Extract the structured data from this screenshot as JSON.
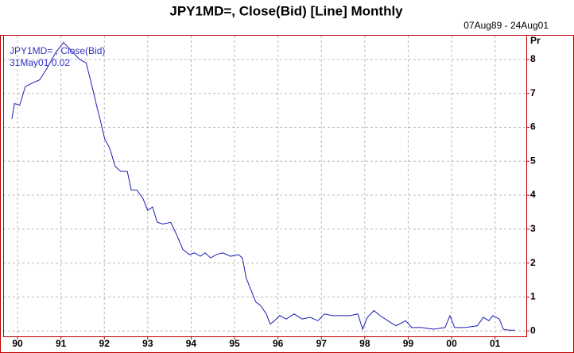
{
  "chart_data": {
    "type": "line",
    "title": "JPY1MD=, Close(Bid) [Line] Monthly",
    "subtitle": "07Aug89 - 24Aug01",
    "y_label": "Pr",
    "annotations": [
      "JPY1MD= , Close(Bid)",
      "31May01 0.02"
    ],
    "x": [
      1989.87,
      1989.93,
      1990.05,
      1990.18,
      1990.33,
      1990.51,
      1990.66,
      1990.88,
      1991.06,
      1991.43,
      1991.58,
      1991.7,
      1991.83,
      1991.9,
      1992.01,
      1992.12,
      1992.25,
      1992.38,
      1992.53,
      1992.62,
      1992.75,
      1992.89,
      1993.0,
      1993.11,
      1993.22,
      1993.35,
      1993.53,
      1993.66,
      1993.81,
      1993.96,
      1994.08,
      1994.21,
      1994.32,
      1994.45,
      1994.58,
      1994.73,
      1994.91,
      1995.09,
      1995.18,
      1995.27,
      1995.38,
      1995.49,
      1995.6,
      1995.73,
      1995.82,
      1995.92,
      1996.04,
      1996.19,
      1996.37,
      1996.56,
      1996.74,
      1996.92,
      1997.07,
      1997.25,
      1997.44,
      1997.66,
      1997.84,
      1997.95,
      1998.06,
      1998.21,
      1998.35,
      1998.53,
      1998.72,
      1998.94,
      1999.08,
      1999.3,
      1999.58,
      1999.85,
      1999.96,
      2000.07,
      2000.31,
      2000.59,
      2000.73,
      2000.86,
      2000.95,
      2001.1,
      2001.19,
      2001.32,
      2001.46
    ],
    "series": [
      {
        "name": "JPY1MD=",
        "color": "#1c1cb4",
        "values": [
          6.25,
          6.7,
          6.65,
          7.2,
          7.3,
          7.4,
          7.7,
          8.2,
          8.5,
          8.0,
          7.9,
          7.3,
          6.6,
          6.25,
          5.65,
          5.4,
          4.85,
          4.7,
          4.7,
          4.15,
          4.15,
          3.9,
          3.55,
          3.65,
          3.2,
          3.15,
          3.2,
          2.85,
          2.4,
          2.25,
          2.3,
          2.2,
          2.3,
          2.15,
          2.25,
          2.3,
          2.2,
          2.25,
          2.15,
          1.55,
          1.2,
          0.85,
          0.75,
          0.5,
          0.2,
          0.3,
          0.45,
          0.35,
          0.5,
          0.35,
          0.4,
          0.3,
          0.5,
          0.45,
          0.45,
          0.45,
          0.5,
          0.05,
          0.4,
          0.6,
          0.45,
          0.3,
          0.15,
          0.3,
          0.1,
          0.1,
          0.05,
          0.1,
          0.45,
          0.1,
          0.1,
          0.15,
          0.4,
          0.3,
          0.45,
          0.35,
          0.05,
          0.02,
          0.02
        ]
      }
    ],
    "xlim": [
      1989.67,
      2001.72
    ],
    "xticks": [
      {
        "value": 1990,
        "label": "90"
      },
      {
        "value": 1991,
        "label": "91"
      },
      {
        "value": 1992,
        "label": "92"
      },
      {
        "value": 1993,
        "label": "93"
      },
      {
        "value": 1994,
        "label": "94"
      },
      {
        "value": 1995,
        "label": "95"
      },
      {
        "value": 1996,
        "label": "96"
      },
      {
        "value": 1997,
        "label": "97"
      },
      {
        "value": 1998,
        "label": "98"
      },
      {
        "value": 1999,
        "label": "99"
      },
      {
        "value": 2000,
        "label": "00"
      },
      {
        "value": 2001,
        "label": "01"
      }
    ],
    "ylim": [
      -0.16,
      8.7
    ],
    "yticks": [
      0,
      1,
      2,
      3,
      4,
      5,
      6,
      7,
      8
    ],
    "grid": true
  }
}
